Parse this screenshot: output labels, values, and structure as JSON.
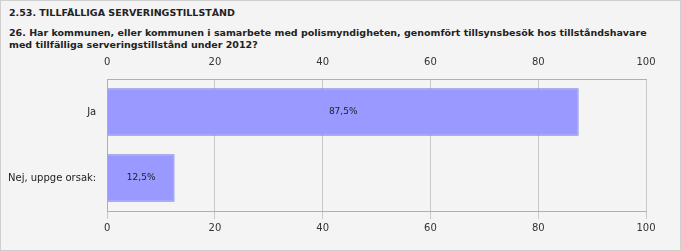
{
  "chart_data": {
    "type": "bar",
    "orientation": "horizontal",
    "title": "2.53. TILLFÄLLIGA SERVERINGSTILLSTÅND",
    "subtitle": "26. Har kommunen, eller kommunen i samarbete med polismyndigheten, genomfört tillsynsbesök hos tillståndshavare med tillfälliga serveringstillstånd under 2012?",
    "categories": [
      "Ja",
      "Nej, uppge orsak:"
    ],
    "values": [
      87.5,
      12.5
    ],
    "value_labels": [
      "87,5%",
      "12,5%"
    ],
    "data_labels": true,
    "color": "#9999ff",
    "xlim": [
      0,
      100
    ],
    "xticks": [
      0,
      20,
      40,
      60,
      80,
      100
    ],
    "grid": true
  }
}
